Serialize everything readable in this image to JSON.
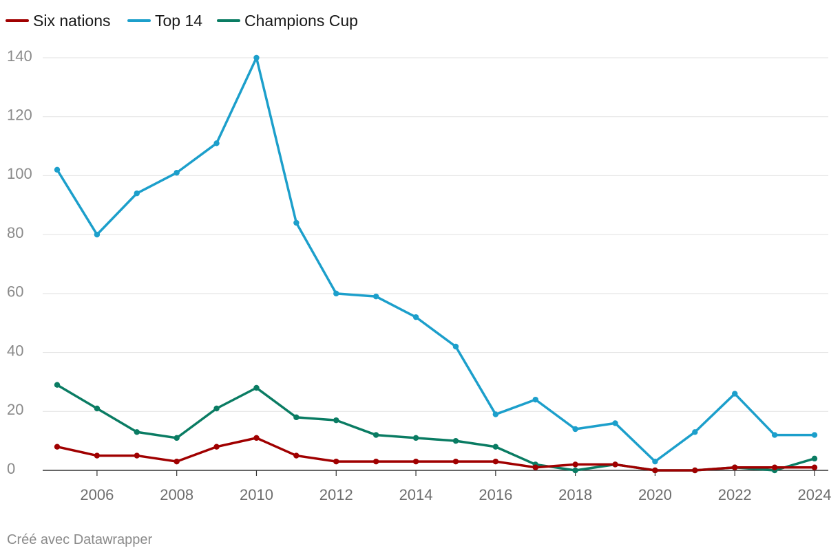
{
  "chart_data": {
    "type": "line",
    "title": "",
    "xlabel": "",
    "ylabel": "",
    "x": [
      2005,
      2006,
      2007,
      2008,
      2009,
      2010,
      2011,
      2012,
      2013,
      2014,
      2015,
      2016,
      2017,
      2018,
      2019,
      2020,
      2021,
      2022,
      2023,
      2024
    ],
    "x_ticks": [
      2006,
      2008,
      2010,
      2012,
      2014,
      2016,
      2018,
      2020,
      2022,
      2024
    ],
    "y_ticks": [
      0,
      20,
      40,
      60,
      80,
      100,
      120,
      140
    ],
    "xlim": [
      2005,
      2024
    ],
    "ylim": [
      0,
      140
    ],
    "grid": "horizontal",
    "legend_position": "top-left",
    "series": [
      {
        "name": "Six nations",
        "color": "#a00000",
        "values": [
          8,
          5,
          5,
          3,
          8,
          11,
          5,
          3,
          3,
          3,
          3,
          3,
          1,
          2,
          2,
          0,
          0,
          1,
          1,
          1
        ]
      },
      {
        "name": "Top 14",
        "color": "#1c9fcb",
        "values": [
          102,
          80,
          94,
          101,
          111,
          140,
          84,
          60,
          59,
          52,
          42,
          19,
          24,
          14,
          16,
          3,
          13,
          26,
          12,
          12
        ]
      },
      {
        "name": "Champions Cup",
        "color": "#0a7c63",
        "values": [
          29,
          21,
          13,
          11,
          21,
          28,
          18,
          17,
          12,
          11,
          10,
          8,
          2,
          0,
          2,
          0,
          0,
          1,
          0,
          4
        ]
      }
    ]
  },
  "footer": {
    "credit": "Créé avec Datawrapper"
  }
}
